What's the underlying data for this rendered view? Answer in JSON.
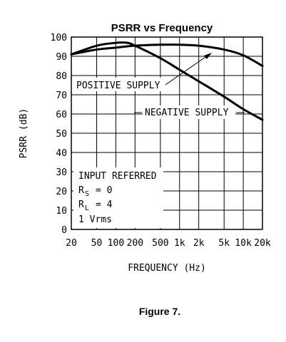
{
  "chart_data": {
    "type": "line",
    "title": "PSRR vs Frequency",
    "xlabel": "FREQUENCY (Hz)",
    "ylabel": "PSRR (dB)",
    "x_scale": "log",
    "xlim": [
      20,
      20000
    ],
    "ylim": [
      0,
      100
    ],
    "grid": true,
    "x_ticks": [
      20,
      50,
      100,
      200,
      500,
      1000,
      2000,
      5000,
      10000,
      20000
    ],
    "x_tick_labels": [
      "20",
      "50",
      "100",
      "200",
      "500",
      "1k",
      "2k",
      "5k",
      "10k",
      "20k"
    ],
    "y_ticks": [
      0,
      10,
      20,
      30,
      40,
      50,
      60,
      70,
      80,
      90,
      100
    ],
    "y_tick_labels": [
      "0",
      "10",
      "20",
      "30",
      "40",
      "50",
      "60",
      "70",
      "80",
      "90",
      "100"
    ],
    "series": [
      {
        "name": "POSITIVE SUPPLY",
        "x": [
          20,
          50,
          100,
          200,
          500,
          1000,
          2000,
          5000,
          10000,
          20000
        ],
        "y": [
          91,
          93.5,
          94.5,
          95.5,
          96,
          96,
          95.5,
          93.5,
          90.5,
          85
        ]
      },
      {
        "name": "NEGATIVE SUPPLY",
        "x": [
          20,
          50,
          100,
          150,
          200,
          500,
          1000,
          2000,
          5000,
          10000,
          20000
        ],
        "y": [
          91,
          95.5,
          97,
          97,
          95.5,
          89,
          83,
          77,
          69,
          62.5,
          57
        ]
      }
    ],
    "annotations": {
      "positive_label": "POSITIVE SUPPLY",
      "negative_label": "NEGATIVE SUPPLY",
      "conditions": {
        "line1": "INPUT REFERRED",
        "rs_symbol": "R",
        "rs_sub": "S",
        "rs_value": "= 0",
        "rl_symbol": "R",
        "rl_sub": "L",
        "rl_value": "= 4",
        "line4": "1 Vrms"
      }
    }
  },
  "caption": "Figure 7."
}
